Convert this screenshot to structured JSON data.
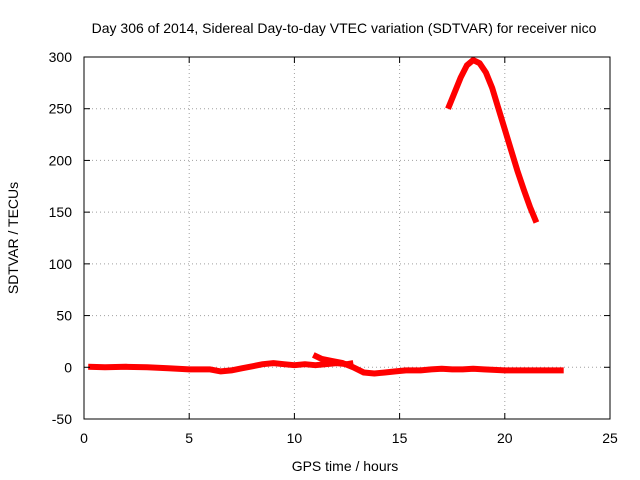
{
  "chart_data": {
    "type": "line",
    "title": "Day 306 of 2014, Sidereal Day-to-day VTEC variation (SDTVAR) for receiver nico",
    "xlabel": "GPS time / hours",
    "ylabel": "SDTVAR / TECUs",
    "xlim": [
      0,
      25
    ],
    "ylim": [
      -50,
      300
    ],
    "xticks": [
      0,
      5,
      10,
      15,
      20,
      25
    ],
    "yticks": [
      -50,
      0,
      50,
      100,
      150,
      200,
      250,
      300
    ],
    "grid": true,
    "colors": {
      "series": "#ff0000",
      "grid": "#a0a0a0",
      "frame": "#000000"
    },
    "series": [
      {
        "values_xy": [
          [
            0.2,
            0.5
          ],
          [
            1,
            0
          ],
          [
            2,
            0.5
          ],
          [
            3,
            0
          ],
          [
            4,
            -1
          ],
          [
            5,
            -2
          ],
          [
            6,
            -2
          ],
          [
            6.5,
            -4
          ],
          [
            7,
            -3
          ],
          [
            7.5,
            -1
          ],
          [
            8,
            1
          ],
          [
            8.5,
            3
          ],
          [
            9,
            4
          ],
          [
            9.5,
            3
          ],
          [
            10,
            2
          ],
          [
            10.5,
            3
          ],
          [
            11,
            2
          ],
          [
            11.5,
            3
          ],
          [
            12,
            4
          ],
          [
            12.5,
            3
          ],
          [
            12.8,
            4
          ]
        ]
      },
      {
        "values_xy": [
          [
            10.9,
            12
          ],
          [
            11.3,
            8
          ],
          [
            11.8,
            6
          ],
          [
            12.3,
            4
          ],
          [
            12.8,
            0
          ],
          [
            13.3,
            -5
          ],
          [
            13.8,
            -6
          ],
          [
            14.3,
            -5
          ],
          [
            14.8,
            -4
          ],
          [
            15.3,
            -3
          ],
          [
            16,
            -3
          ],
          [
            16.5,
            -2
          ],
          [
            17,
            -1.5
          ],
          [
            17.5,
            -2
          ],
          [
            18,
            -2
          ],
          [
            18.5,
            -1.5
          ],
          [
            19,
            -2
          ],
          [
            20,
            -3
          ],
          [
            21,
            -3
          ],
          [
            22,
            -3
          ],
          [
            22.8,
            -3
          ]
        ]
      },
      {
        "values_xy": [
          [
            17.3,
            250
          ],
          [
            17.6,
            265
          ],
          [
            17.9,
            280
          ],
          [
            18.2,
            292
          ],
          [
            18.5,
            297
          ],
          [
            18.8,
            294
          ],
          [
            19.1,
            285
          ],
          [
            19.4,
            270
          ],
          [
            19.7,
            250
          ],
          [
            20.0,
            230
          ],
          [
            20.3,
            210
          ],
          [
            20.6,
            190
          ],
          [
            20.9,
            172
          ],
          [
            21.2,
            155
          ],
          [
            21.5,
            140
          ]
        ]
      }
    ]
  }
}
